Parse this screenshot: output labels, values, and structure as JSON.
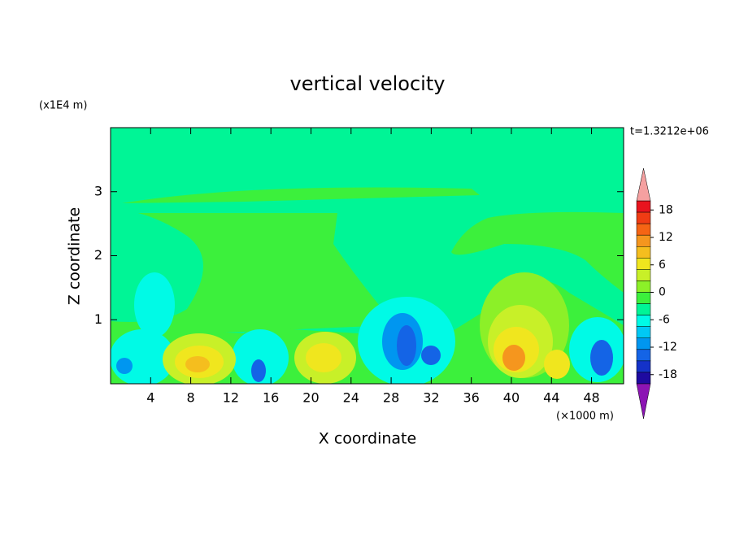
{
  "chart_data": {
    "type": "contour",
    "title": "vertical velocity",
    "xlabel": "X coordinate",
    "ylabel": "Z coordinate",
    "xunit": "(×1000 m)",
    "yunit": "(x1E4 m)",
    "annotation": "t=1.3212e+06",
    "xlim": [
      0,
      51.2
    ],
    "ylim": [
      0,
      4
    ],
    "xticks": [
      4,
      8,
      12,
      16,
      20,
      24,
      28,
      32,
      36,
      40,
      44,
      48
    ],
    "yticks": [
      1,
      2,
      3
    ],
    "colorbar": {
      "clim": [
        -20,
        20
      ],
      "ticks": [
        18,
        12,
        6,
        0,
        -6,
        -12,
        -18
      ],
      "colors": [
        "#e8141e",
        "#f03c14",
        "#f56414",
        "#f5961e",
        "#f5be1e",
        "#f0e61e",
        "#c8f028",
        "#8cf028",
        "#3cf03c",
        "#00f596",
        "#00fae6",
        "#00c8f5",
        "#0096f0",
        "#1464e6",
        "#1432c8",
        "#1e0aa0"
      ],
      "over_color": "#f5a0a0",
      "under_color": "#8c14b4"
    }
  }
}
